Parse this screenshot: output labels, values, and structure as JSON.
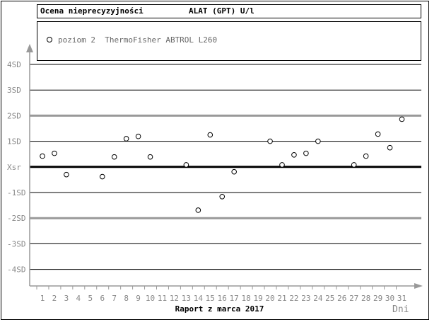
{
  "header": {
    "left_title": "Ocena nieprecyzyjności",
    "right_title": "ALAT (GPT) U/l"
  },
  "legend": {
    "entry": "poziom 2  ThermoFisher ABTROL L260"
  },
  "footer": {
    "report_title": "Raport z marca 2017",
    "x_unit": "Dni"
  },
  "colors": {
    "grid": "#000000",
    "thick_band": "#999999",
    "axis": "#999999",
    "tick_label": "#888888",
    "center_line": "#000000"
  },
  "chart_data": {
    "type": "scatter",
    "title": "Ocena nieprecyzyjności",
    "ylabel": "",
    "xlabel": "Raport z marca 2017",
    "x_unit": "Dni",
    "y_ticks": [
      "4SD",
      "3SD",
      "2SD",
      "1SD",
      "Xsr",
      "-1SD",
      "-2SD",
      "-3SD",
      "-4SD"
    ],
    "y_tick_values": [
      4,
      3,
      2,
      1,
      0,
      -1,
      -2,
      -3,
      -4
    ],
    "ylim": [
      -4,
      4
    ],
    "x_ticks": [
      "1",
      "2",
      "3",
      "4",
      "5",
      "6",
      "7",
      "8",
      "9",
      "10",
      "11",
      "12",
      "13",
      "14",
      "15",
      "16",
      "17",
      "18",
      "19",
      "20",
      "21",
      "22",
      "23",
      "24",
      "25",
      "26",
      "27",
      "28",
      "29",
      "30",
      "31"
    ],
    "xlim": [
      1,
      31
    ],
    "warning_limits": [
      2,
      -2
    ],
    "center_line": 0,
    "series": [
      {
        "name": "poziom 2  ThermoFisher ABTROL L260",
        "points": [
          {
            "x": 1,
            "y": 0.42
          },
          {
            "x": 2,
            "y": 0.53
          },
          {
            "x": 3,
            "y": -0.3
          },
          {
            "x": 6,
            "y": -0.38
          },
          {
            "x": 7,
            "y": 0.39
          },
          {
            "x": 8,
            "y": 1.1
          },
          {
            "x": 9,
            "y": 1.19
          },
          {
            "x": 10,
            "y": 0.39
          },
          {
            "x": 13,
            "y": 0.08
          },
          {
            "x": 14,
            "y": -1.69
          },
          {
            "x": 15,
            "y": 1.25
          },
          {
            "x": 16,
            "y": -1.16
          },
          {
            "x": 17,
            "y": -0.19
          },
          {
            "x": 20,
            "y": 1.0
          },
          {
            "x": 21,
            "y": 0.08
          },
          {
            "x": 22,
            "y": 0.47
          },
          {
            "x": 23,
            "y": 0.53
          },
          {
            "x": 24,
            "y": 1.0
          },
          {
            "x": 27,
            "y": 0.08
          },
          {
            "x": 28,
            "y": 0.42
          },
          {
            "x": 29,
            "y": 1.28
          },
          {
            "x": 30,
            "y": 0.75
          },
          {
            "x": 31,
            "y": 1.86
          }
        ]
      }
    ]
  }
}
